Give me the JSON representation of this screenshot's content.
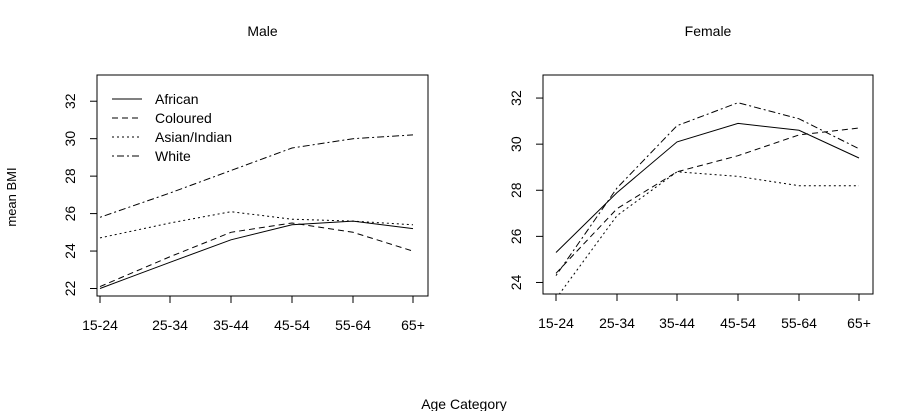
{
  "figure": {
    "ylabel": "mean BMI",
    "xlabel": "Age Category"
  },
  "chart_data": [
    {
      "type": "line",
      "title": "Male",
      "categories": [
        "15-24",
        "25-34",
        "35-44",
        "45-54",
        "55-64",
        "65+"
      ],
      "ylim": [
        21.6,
        33.4
      ],
      "yticks": [
        22,
        24,
        26,
        28,
        30,
        32
      ],
      "grid": false,
      "legend": "top-left",
      "series": [
        {
          "name": "African",
          "dash": "solid",
          "values": [
            22.0,
            23.4,
            24.6,
            25.4,
            25.6,
            25.2
          ]
        },
        {
          "name": "Coloured",
          "dash": "dashed",
          "values": [
            22.1,
            23.7,
            25.0,
            25.5,
            25.0,
            24.0
          ]
        },
        {
          "name": "Asian/Indian",
          "dash": "dotted",
          "values": [
            24.7,
            25.5,
            26.1,
            25.7,
            25.6,
            25.4
          ]
        },
        {
          "name": "White",
          "dash": "dashdot",
          "values": [
            25.8,
            27.1,
            28.3,
            29.5,
            30.0,
            30.2
          ]
        }
      ]
    },
    {
      "type": "line",
      "title": "Female",
      "categories": [
        "15-24",
        "25-34",
        "35-44",
        "45-54",
        "55-64",
        "65+"
      ],
      "ylim": [
        23.5,
        33.0
      ],
      "yticks": [
        24,
        26,
        28,
        30,
        32
      ],
      "grid": false,
      "legend": "none",
      "series": [
        {
          "name": "African",
          "dash": "solid",
          "values": [
            25.3,
            27.9,
            30.1,
            30.9,
            30.6,
            29.4
          ]
        },
        {
          "name": "Coloured",
          "dash": "dashed",
          "values": [
            24.4,
            27.2,
            28.8,
            29.5,
            30.4,
            30.7
          ]
        },
        {
          "name": "Asian/Indian",
          "dash": "dotted",
          "values": [
            23.3,
            26.9,
            28.8,
            28.6,
            28.2,
            28.2
          ]
        },
        {
          "name": "White",
          "dash": "dashdot",
          "values": [
            24.3,
            28.1,
            30.8,
            31.8,
            31.1,
            29.8
          ]
        }
      ]
    }
  ]
}
